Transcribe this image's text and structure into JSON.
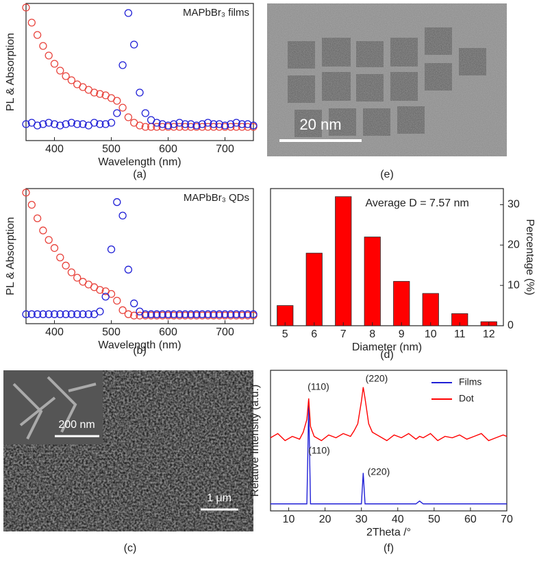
{
  "chart_data": [
    {
      "type": "scatter",
      "title": "MAPbBr₃ films",
      "panel_label": "(a)",
      "x_label": "Wavelength (nm)",
      "y_label": "PL & Absorption",
      "xlim": [
        350,
        750
      ],
      "xticks": [
        400,
        500,
        600,
        700
      ],
      "ylim": [
        0,
        1
      ],
      "x": [
        350,
        360,
        370,
        380,
        390,
        400,
        410,
        420,
        430,
        440,
        450,
        460,
        470,
        480,
        490,
        500,
        510,
        520,
        530,
        540,
        550,
        560,
        570,
        580,
        590,
        600,
        610,
        620,
        630,
        640,
        650,
        660,
        670,
        680,
        690,
        700,
        710,
        720,
        730,
        740,
        750
      ],
      "series": [
        {
          "color": "#e8433c",
          "values": [
            0.97,
            0.86,
            0.77,
            0.69,
            0.62,
            0.56,
            0.51,
            0.47,
            0.44,
            0.41,
            0.39,
            0.37,
            0.35,
            0.34,
            0.33,
            0.31,
            0.29,
            0.24,
            0.17,
            0.13,
            0.11,
            0.1,
            0.1,
            0.1,
            0.1,
            0.1,
            0.1,
            0.1,
            0.1,
            0.1,
            0.1,
            0.1,
            0.1,
            0.1,
            0.1,
            0.1,
            0.1,
            0.1,
            0.1,
            0.1,
            0.1
          ]
        },
        {
          "color": "#1f1fd6",
          "values": [
            0.12,
            0.13,
            0.11,
            0.12,
            0.13,
            0.12,
            0.11,
            0.12,
            0.13,
            0.12,
            0.12,
            0.11,
            0.13,
            0.12,
            0.12,
            0.13,
            0.2,
            0.55,
            0.93,
            0.7,
            0.35,
            0.2,
            0.15,
            0.13,
            0.12,
            0.11,
            0.12,
            0.13,
            0.12,
            0.12,
            0.11,
            0.12,
            0.13,
            0.12,
            0.12,
            0.11,
            0.12,
            0.13,
            0.12,
            0.12,
            0.11
          ]
        }
      ]
    },
    {
      "type": "scatter",
      "title": "MAPbBr₃ QDs",
      "panel_label": "(b)",
      "x_label": "Wavelength (nm)",
      "y_label": "PL & Absorption",
      "xlim": [
        350,
        750
      ],
      "xticks": [
        400,
        500,
        600,
        700
      ],
      "ylim": [
        0,
        1
      ],
      "x": [
        350,
        360,
        370,
        380,
        390,
        400,
        410,
        420,
        430,
        440,
        450,
        460,
        470,
        480,
        490,
        500,
        510,
        520,
        530,
        540,
        550,
        560,
        570,
        580,
        590,
        600,
        610,
        620,
        630,
        640,
        650,
        660,
        670,
        680,
        690,
        700,
        710,
        720,
        730,
        740,
        750
      ],
      "series": [
        {
          "color": "#e8433c",
          "values": [
            0.97,
            0.88,
            0.78,
            0.69,
            0.62,
            0.56,
            0.49,
            0.43,
            0.38,
            0.34,
            0.31,
            0.29,
            0.27,
            0.25,
            0.24,
            0.22,
            0.17,
            0.1,
            0.07,
            0.06,
            0.06,
            0.06,
            0.06,
            0.06,
            0.06,
            0.06,
            0.06,
            0.06,
            0.06,
            0.06,
            0.06,
            0.06,
            0.06,
            0.06,
            0.06,
            0.06,
            0.06,
            0.06,
            0.06,
            0.06,
            0.06
          ]
        },
        {
          "color": "#1f1fd6",
          "values": [
            0.07,
            0.07,
            0.07,
            0.07,
            0.07,
            0.07,
            0.07,
            0.07,
            0.07,
            0.07,
            0.07,
            0.07,
            0.07,
            0.09,
            0.2,
            0.55,
            0.9,
            0.8,
            0.4,
            0.15,
            0.09,
            0.07,
            0.07,
            0.07,
            0.07,
            0.07,
            0.07,
            0.07,
            0.07,
            0.07,
            0.07,
            0.07,
            0.07,
            0.07,
            0.07,
            0.07,
            0.07,
            0.07,
            0.07,
            0.07,
            0.07
          ]
        }
      ]
    },
    {
      "type": "bar",
      "panel_label": "(d)",
      "x_label": "Diameter (nm)",
      "y_label": "Percentage (%)",
      "annotation": "Average D = 7.57 nm",
      "categories": [
        "5",
        "6",
        "7",
        "8",
        "9",
        "10",
        "11",
        "12"
      ],
      "values": [
        5,
        18,
        32,
        22,
        11,
        8,
        3,
        1
      ],
      "color": "#ff0000",
      "ylim": [
        0,
        34
      ],
      "yticks": [
        0,
        10,
        20,
        30
      ],
      "y_axis_side": "right"
    },
    {
      "type": "line",
      "panel_label": "(f)",
      "x_label": "2Theta /°",
      "y_label": "Relative Intensity (a.u.)",
      "legend": "upper right",
      "annotations": [
        "(110)",
        "(220)",
        "(110)",
        "(220)"
      ],
      "xlim": [
        5,
        70
      ],
      "xticks": [
        10,
        20,
        30,
        40,
        50,
        60,
        70
      ],
      "ylim": [
        0,
        1
      ],
      "x": [
        5,
        7,
        9,
        11,
        13,
        14,
        15,
        15.5,
        16,
        17,
        19,
        21,
        23,
        25,
        27,
        28,
        29,
        30,
        30.5,
        31,
        32,
        33,
        35,
        37,
        39,
        41,
        43,
        45,
        46,
        47,
        49,
        51,
        53,
        55,
        57,
        59,
        61,
        63,
        65,
        67,
        69,
        70
      ],
      "series": [
        {
          "name": "Films",
          "color": "#1f1fd6",
          "values": [
            0.05,
            0.05,
            0.05,
            0.05,
            0.05,
            0.05,
            0.05,
            0.75,
            0.05,
            0.05,
            0.05,
            0.05,
            0.05,
            0.05,
            0.05,
            0.05,
            0.05,
            0.05,
            0.27,
            0.05,
            0.05,
            0.05,
            0.05,
            0.05,
            0.05,
            0.05,
            0.05,
            0.05,
            0.07,
            0.05,
            0.05,
            0.05,
            0.05,
            0.05,
            0.05,
            0.05,
            0.05,
            0.05,
            0.05,
            0.05,
            0.05,
            0.05
          ]
        },
        {
          "name": "Dot",
          "color": "#ff0000",
          "values": [
            0.52,
            0.55,
            0.5,
            0.53,
            0.51,
            0.56,
            0.65,
            0.8,
            0.6,
            0.53,
            0.5,
            0.54,
            0.52,
            0.55,
            0.53,
            0.57,
            0.62,
            0.78,
            0.88,
            0.8,
            0.62,
            0.56,
            0.53,
            0.5,
            0.54,
            0.52,
            0.55,
            0.51,
            0.53,
            0.52,
            0.55,
            0.5,
            0.53,
            0.52,
            0.54,
            0.51,
            0.53,
            0.55,
            0.5,
            0.52,
            0.54,
            0.53
          ]
        }
      ]
    }
  ],
  "images": [
    {
      "panel_label": "(c)",
      "inset_scale_bar": "200 nm",
      "scale_bar": "1 μm"
    },
    {
      "panel_label": "(e)",
      "scale_bar": "20 nm"
    }
  ]
}
